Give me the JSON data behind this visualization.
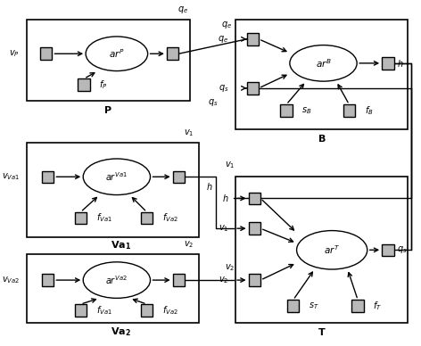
{
  "bg_color": "#ffffff",
  "box_fc": "#b0b0b0",
  "box_ec": "#000000",
  "ell_fc": "#ffffff",
  "ell_ec": "#000000",
  "lw": 1.0,
  "fig_w": 4.72,
  "fig_h": 3.88,
  "dpi": 100
}
